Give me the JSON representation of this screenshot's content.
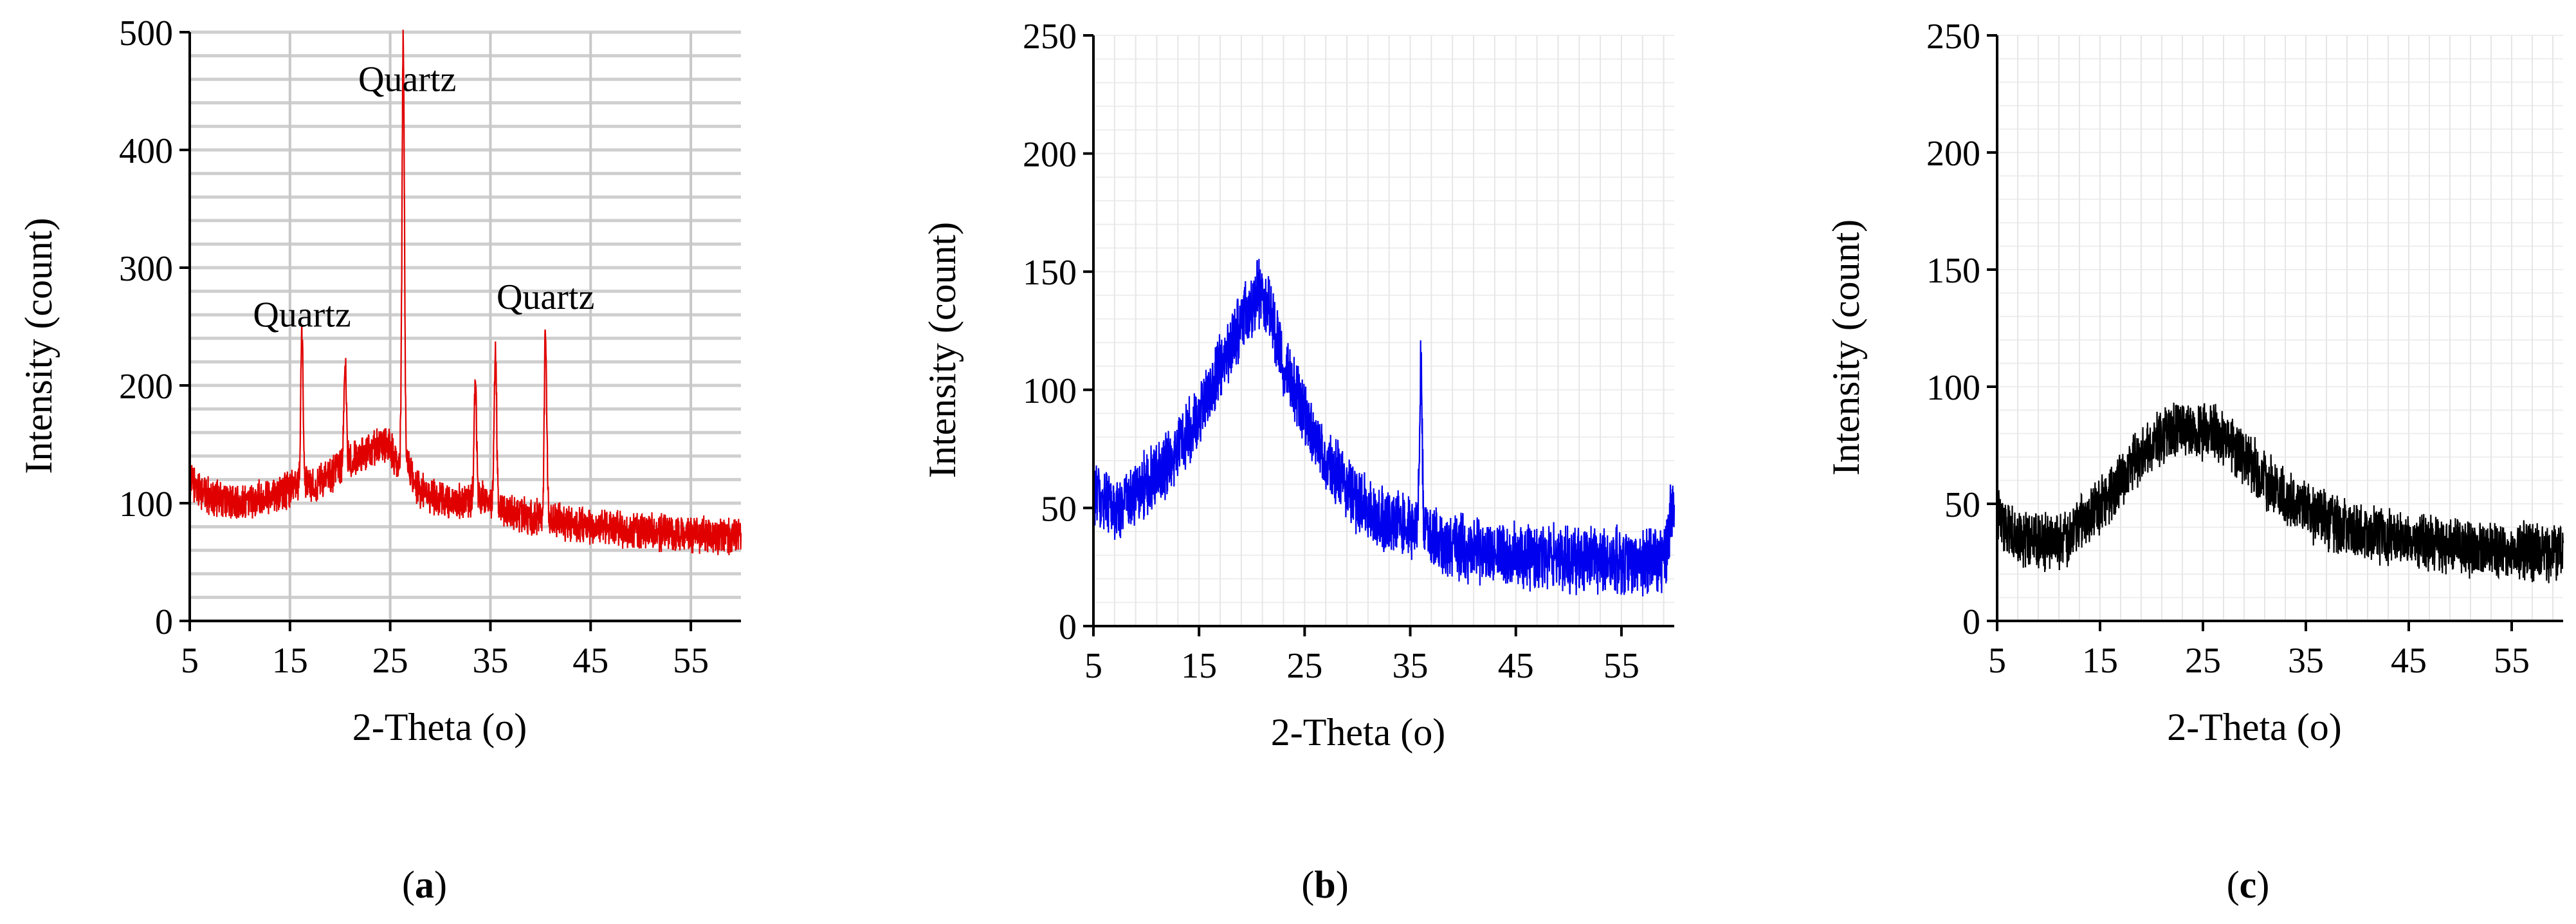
{
  "chart_data": [
    {
      "type": "line",
      "panel_label": "a",
      "xlabel": "2-Theta (o)",
      "ylabel": "Intensity (count)",
      "xlim": [
        5,
        60
      ],
      "ylim": [
        0,
        500
      ],
      "xticks": [
        5,
        15,
        25,
        35,
        45,
        55
      ],
      "yticks": [
        0,
        100,
        200,
        300,
        400,
        500
      ],
      "grid": true,
      "series": [
        {
          "color": "#e00000",
          "x": [
            5,
            6,
            7,
            8,
            9,
            10,
            11,
            12,
            13,
            14,
            15,
            15.8,
            16.2,
            16.6,
            17,
            18,
            19,
            20,
            20.5,
            21,
            22,
            23,
            24,
            25,
            25.8,
            26.3,
            26.7,
            27.3,
            28,
            29,
            30,
            31,
            32,
            33,
            33.5,
            34,
            35,
            35.5,
            36,
            37,
            38,
            39,
            40,
            40.5,
            41,
            42,
            43,
            44,
            45,
            46,
            47,
            48,
            49,
            50,
            51,
            52,
            53,
            54,
            55,
            56,
            57,
            58,
            59,
            60
          ],
          "y": [
            118,
            112,
            106,
            103,
            101,
            100,
            102,
            105,
            108,
            110,
            112,
            116,
            242,
            118,
            116,
            118,
            122,
            130,
            222,
            135,
            140,
            145,
            150,
            148,
            130,
            490,
            140,
            120,
            110,
            106,
            103,
            101,
            100,
            102,
            200,
            104,
            101,
            232,
            96,
            93,
            90,
            88,
            87,
            250,
            86,
            84,
            83,
            82,
            81,
            80,
            79,
            78,
            77,
            76,
            76,
            75,
            74,
            74,
            73,
            73,
            72,
            72,
            71,
            71
          ]
        }
      ],
      "annotations": [
        {
          "text": "Quartz",
          "x": 16.2,
          "y": 250
        },
        {
          "text": "Quartz",
          "x": 26.7,
          "y": 450
        },
        {
          "text": "Quartz",
          "x": 40.5,
          "y": 265
        }
      ]
    },
    {
      "type": "line",
      "panel_label": "b",
      "xlabel": "2-Theta (o)",
      "ylabel": "Intensity (count)",
      "xlim": [
        5,
        60
      ],
      "ylim": [
        0,
        250
      ],
      "xticks": [
        5,
        15,
        25,
        35,
        45,
        55
      ],
      "yticks": [
        0,
        50,
        100,
        150,
        200,
        250
      ],
      "grid": true,
      "series": [
        {
          "color": "#0000ee",
          "x": [
            5,
            6,
            7,
            8,
            9,
            10,
            11,
            12,
            13,
            14,
            15,
            16,
            17,
            18,
            19,
            20,
            20.5,
            21,
            21.5,
            22,
            23,
            24,
            25,
            26,
            27,
            28,
            29,
            30,
            31,
            32,
            33,
            34,
            35,
            35.6,
            36,
            36.4,
            37,
            38,
            39,
            40,
            41,
            42,
            43,
            44,
            45,
            46,
            47,
            48,
            49,
            50,
            51,
            52,
            53,
            54,
            55,
            56,
            57,
            58,
            59,
            60
          ],
          "y": [
            55,
            52,
            50,
            52,
            55,
            60,
            64,
            69,
            75,
            82,
            90,
            100,
            110,
            120,
            128,
            135,
            142,
            140,
            136,
            128,
            112,
            100,
            88,
            78,
            70,
            64,
            59,
            54,
            50,
            46,
            44,
            43,
            42,
            42,
            110,
            42,
            38,
            35,
            34,
            33,
            32,
            31,
            31,
            30,
            30,
            30,
            29,
            29,
            29,
            28,
            28,
            28,
            28,
            28,
            27,
            27,
            27,
            27,
            27,
            55
          ]
        }
      ],
      "annotations": []
    },
    {
      "type": "line",
      "panel_label": "c",
      "xlabel": "2-Theta (o)",
      "ylabel": "Intensity (count)",
      "xlim": [
        5,
        60
      ],
      "ylim": [
        0,
        250
      ],
      "xticks": [
        5,
        15,
        25,
        35,
        45,
        55
      ],
      "yticks": [
        0,
        50,
        100,
        150,
        200,
        250
      ],
      "grid": true,
      "series": [
        {
          "color": "#000000",
          "x": [
            5,
            6,
            7,
            8,
            9,
            10,
            11,
            12,
            13,
            14,
            15,
            16,
            17,
            18,
            19,
            20,
            21,
            22,
            23,
            24,
            25,
            26,
            27,
            28,
            29,
            30,
            31,
            32,
            33,
            34,
            35,
            36,
            37,
            38,
            39,
            40,
            41,
            42,
            43,
            44,
            45,
            46,
            47,
            48,
            49,
            50,
            51,
            52,
            53,
            54,
            55,
            56,
            57,
            58,
            59,
            60
          ],
          "y": [
            44,
            40,
            37,
            35,
            34,
            34,
            35,
            37,
            40,
            44,
            49,
            54,
            60,
            66,
            71,
            75,
            78,
            80,
            82,
            82,
            81,
            80,
            78,
            74,
            70,
            65,
            60,
            56,
            53,
            50,
            47,
            45,
            43,
            41,
            40,
            39,
            38,
            37,
            36,
            35,
            34,
            34,
            33,
            33,
            32,
            32,
            31,
            31,
            31,
            30,
            30,
            30,
            29,
            29,
            29,
            29
          ]
        }
      ],
      "annotations": []
    }
  ]
}
